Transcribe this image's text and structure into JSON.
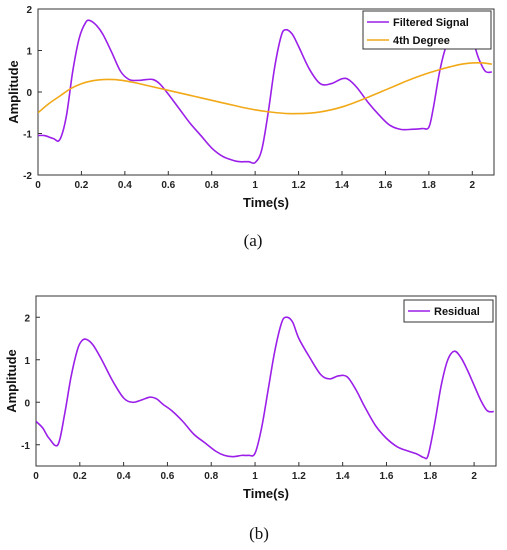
{
  "chart_data": [
    {
      "type": "line",
      "panel_label": "(a)",
      "xlabel": "Time(s)",
      "ylabel": "Amplitude",
      "xlim": [
        0,
        2.1
      ],
      "ylim": [
        -2,
        2
      ],
      "xticks": [
        "0",
        "0.2",
        "0.4",
        "0.6",
        "0.8",
        "1",
        "1.2",
        "1.4",
        "1.6",
        "1.8",
        "2"
      ],
      "yticks": [
        "-2",
        "-1",
        "0",
        "1",
        "2"
      ],
      "legend_position": "top-right",
      "grid": false,
      "series": [
        {
          "name": "Filtered Signal",
          "color": "#9b1fe8",
          "x": [
            0,
            0.03,
            0.07,
            0.1,
            0.13,
            0.16,
            0.19,
            0.22,
            0.24,
            0.27,
            0.3,
            0.34,
            0.38,
            0.42,
            0.46,
            0.5,
            0.53,
            0.56,
            0.6,
            0.65,
            0.7,
            0.75,
            0.8,
            0.85,
            0.9,
            0.93,
            0.97,
            1.0,
            1.03,
            1.06,
            1.09,
            1.12,
            1.14,
            1.17,
            1.2,
            1.25,
            1.3,
            1.35,
            1.4,
            1.43,
            1.47,
            1.52,
            1.57,
            1.62,
            1.67,
            1.72,
            1.77,
            1.8,
            1.82,
            1.85,
            1.88,
            1.91,
            1.94,
            1.97,
            2.0,
            2.03,
            2.06,
            2.09
          ],
          "y": [
            -1.05,
            -1.05,
            -1.12,
            -1.15,
            -0.6,
            0.5,
            1.3,
            1.68,
            1.72,
            1.6,
            1.38,
            0.95,
            0.5,
            0.3,
            0.28,
            0.3,
            0.3,
            0.2,
            -0.05,
            -0.4,
            -0.75,
            -1.05,
            -1.35,
            -1.55,
            -1.65,
            -1.68,
            -1.68,
            -1.7,
            -1.4,
            -0.5,
            0.6,
            1.35,
            1.5,
            1.4,
            1.1,
            0.55,
            0.2,
            0.2,
            0.32,
            0.3,
            0.1,
            -0.25,
            -0.55,
            -0.8,
            -0.9,
            -0.9,
            -0.88,
            -0.85,
            -0.4,
            0.5,
            1.1,
            1.25,
            1.3,
            1.3,
            1.25,
            0.8,
            0.5,
            0.48
          ]
        },
        {
          "name": "4th Degree",
          "color": "#f2a918",
          "x": [
            0,
            0.05,
            0.1,
            0.15,
            0.2,
            0.25,
            0.3,
            0.35,
            0.4,
            0.45,
            0.5,
            0.55,
            0.6,
            0.65,
            0.7,
            0.75,
            0.8,
            0.85,
            0.9,
            0.95,
            1.0,
            1.05,
            1.1,
            1.15,
            1.2,
            1.25,
            1.3,
            1.35,
            1.4,
            1.45,
            1.5,
            1.55,
            1.6,
            1.65,
            1.7,
            1.75,
            1.8,
            1.85,
            1.9,
            1.95,
            2.0,
            2.05,
            2.09
          ],
          "y": [
            -0.5,
            -0.28,
            -0.1,
            0.08,
            0.2,
            0.27,
            0.3,
            0.3,
            0.27,
            0.22,
            0.16,
            0.1,
            0.04,
            -0.02,
            -0.08,
            -0.14,
            -0.2,
            -0.26,
            -0.32,
            -0.38,
            -0.43,
            -0.47,
            -0.5,
            -0.52,
            -0.52,
            -0.51,
            -0.48,
            -0.43,
            -0.36,
            -0.27,
            -0.17,
            -0.06,
            0.05,
            0.16,
            0.27,
            0.37,
            0.46,
            0.54,
            0.61,
            0.67,
            0.7,
            0.7,
            0.67
          ]
        }
      ]
    },
    {
      "type": "line",
      "panel_label": "(b)",
      "xlabel": "Time(s)",
      "ylabel": "Amplitude",
      "xlim": [
        0,
        2.1
      ],
      "ylim": [
        -1.5,
        2.5
      ],
      "xticks": [
        "0",
        "0.2",
        "0.4",
        "0.6",
        "0.8",
        "1",
        "1.2",
        "1.4",
        "1.6",
        "1.8",
        "2"
      ],
      "yticks": [
        "-1",
        "0",
        "1",
        "2"
      ],
      "legend_position": "top-right",
      "grid": false,
      "series": [
        {
          "name": "Residual",
          "color": "#9b1fe8",
          "x": [
            0,
            0.03,
            0.06,
            0.1,
            0.13,
            0.16,
            0.19,
            0.21,
            0.23,
            0.26,
            0.3,
            0.35,
            0.4,
            0.44,
            0.48,
            0.52,
            0.55,
            0.58,
            0.62,
            0.67,
            0.72,
            0.77,
            0.82,
            0.86,
            0.9,
            0.94,
            0.97,
            1.0,
            1.03,
            1.06,
            1.09,
            1.12,
            1.14,
            1.17,
            1.2,
            1.25,
            1.3,
            1.34,
            1.38,
            1.42,
            1.46,
            1.5,
            1.55,
            1.6,
            1.65,
            1.7,
            1.74,
            1.77,
            1.79,
            1.82,
            1.85,
            1.88,
            1.91,
            1.94,
            1.97,
            2.0,
            2.03,
            2.06,
            2.09
          ],
          "y": [
            -0.45,
            -0.6,
            -0.85,
            -1.0,
            -0.3,
            0.6,
            1.25,
            1.45,
            1.48,
            1.35,
            1.0,
            0.5,
            0.1,
            0.0,
            0.05,
            0.12,
            0.08,
            -0.05,
            -0.2,
            -0.45,
            -0.75,
            -0.95,
            -1.15,
            -1.25,
            -1.28,
            -1.25,
            -1.25,
            -1.2,
            -0.6,
            0.3,
            1.2,
            1.85,
            2.0,
            1.9,
            1.5,
            1.05,
            0.65,
            0.55,
            0.62,
            0.6,
            0.3,
            -0.1,
            -0.55,
            -0.85,
            -1.05,
            -1.15,
            -1.22,
            -1.3,
            -1.25,
            -0.5,
            0.4,
            1.0,
            1.2,
            1.05,
            0.75,
            0.4,
            0.05,
            -0.2,
            -0.22
          ]
        }
      ]
    }
  ]
}
